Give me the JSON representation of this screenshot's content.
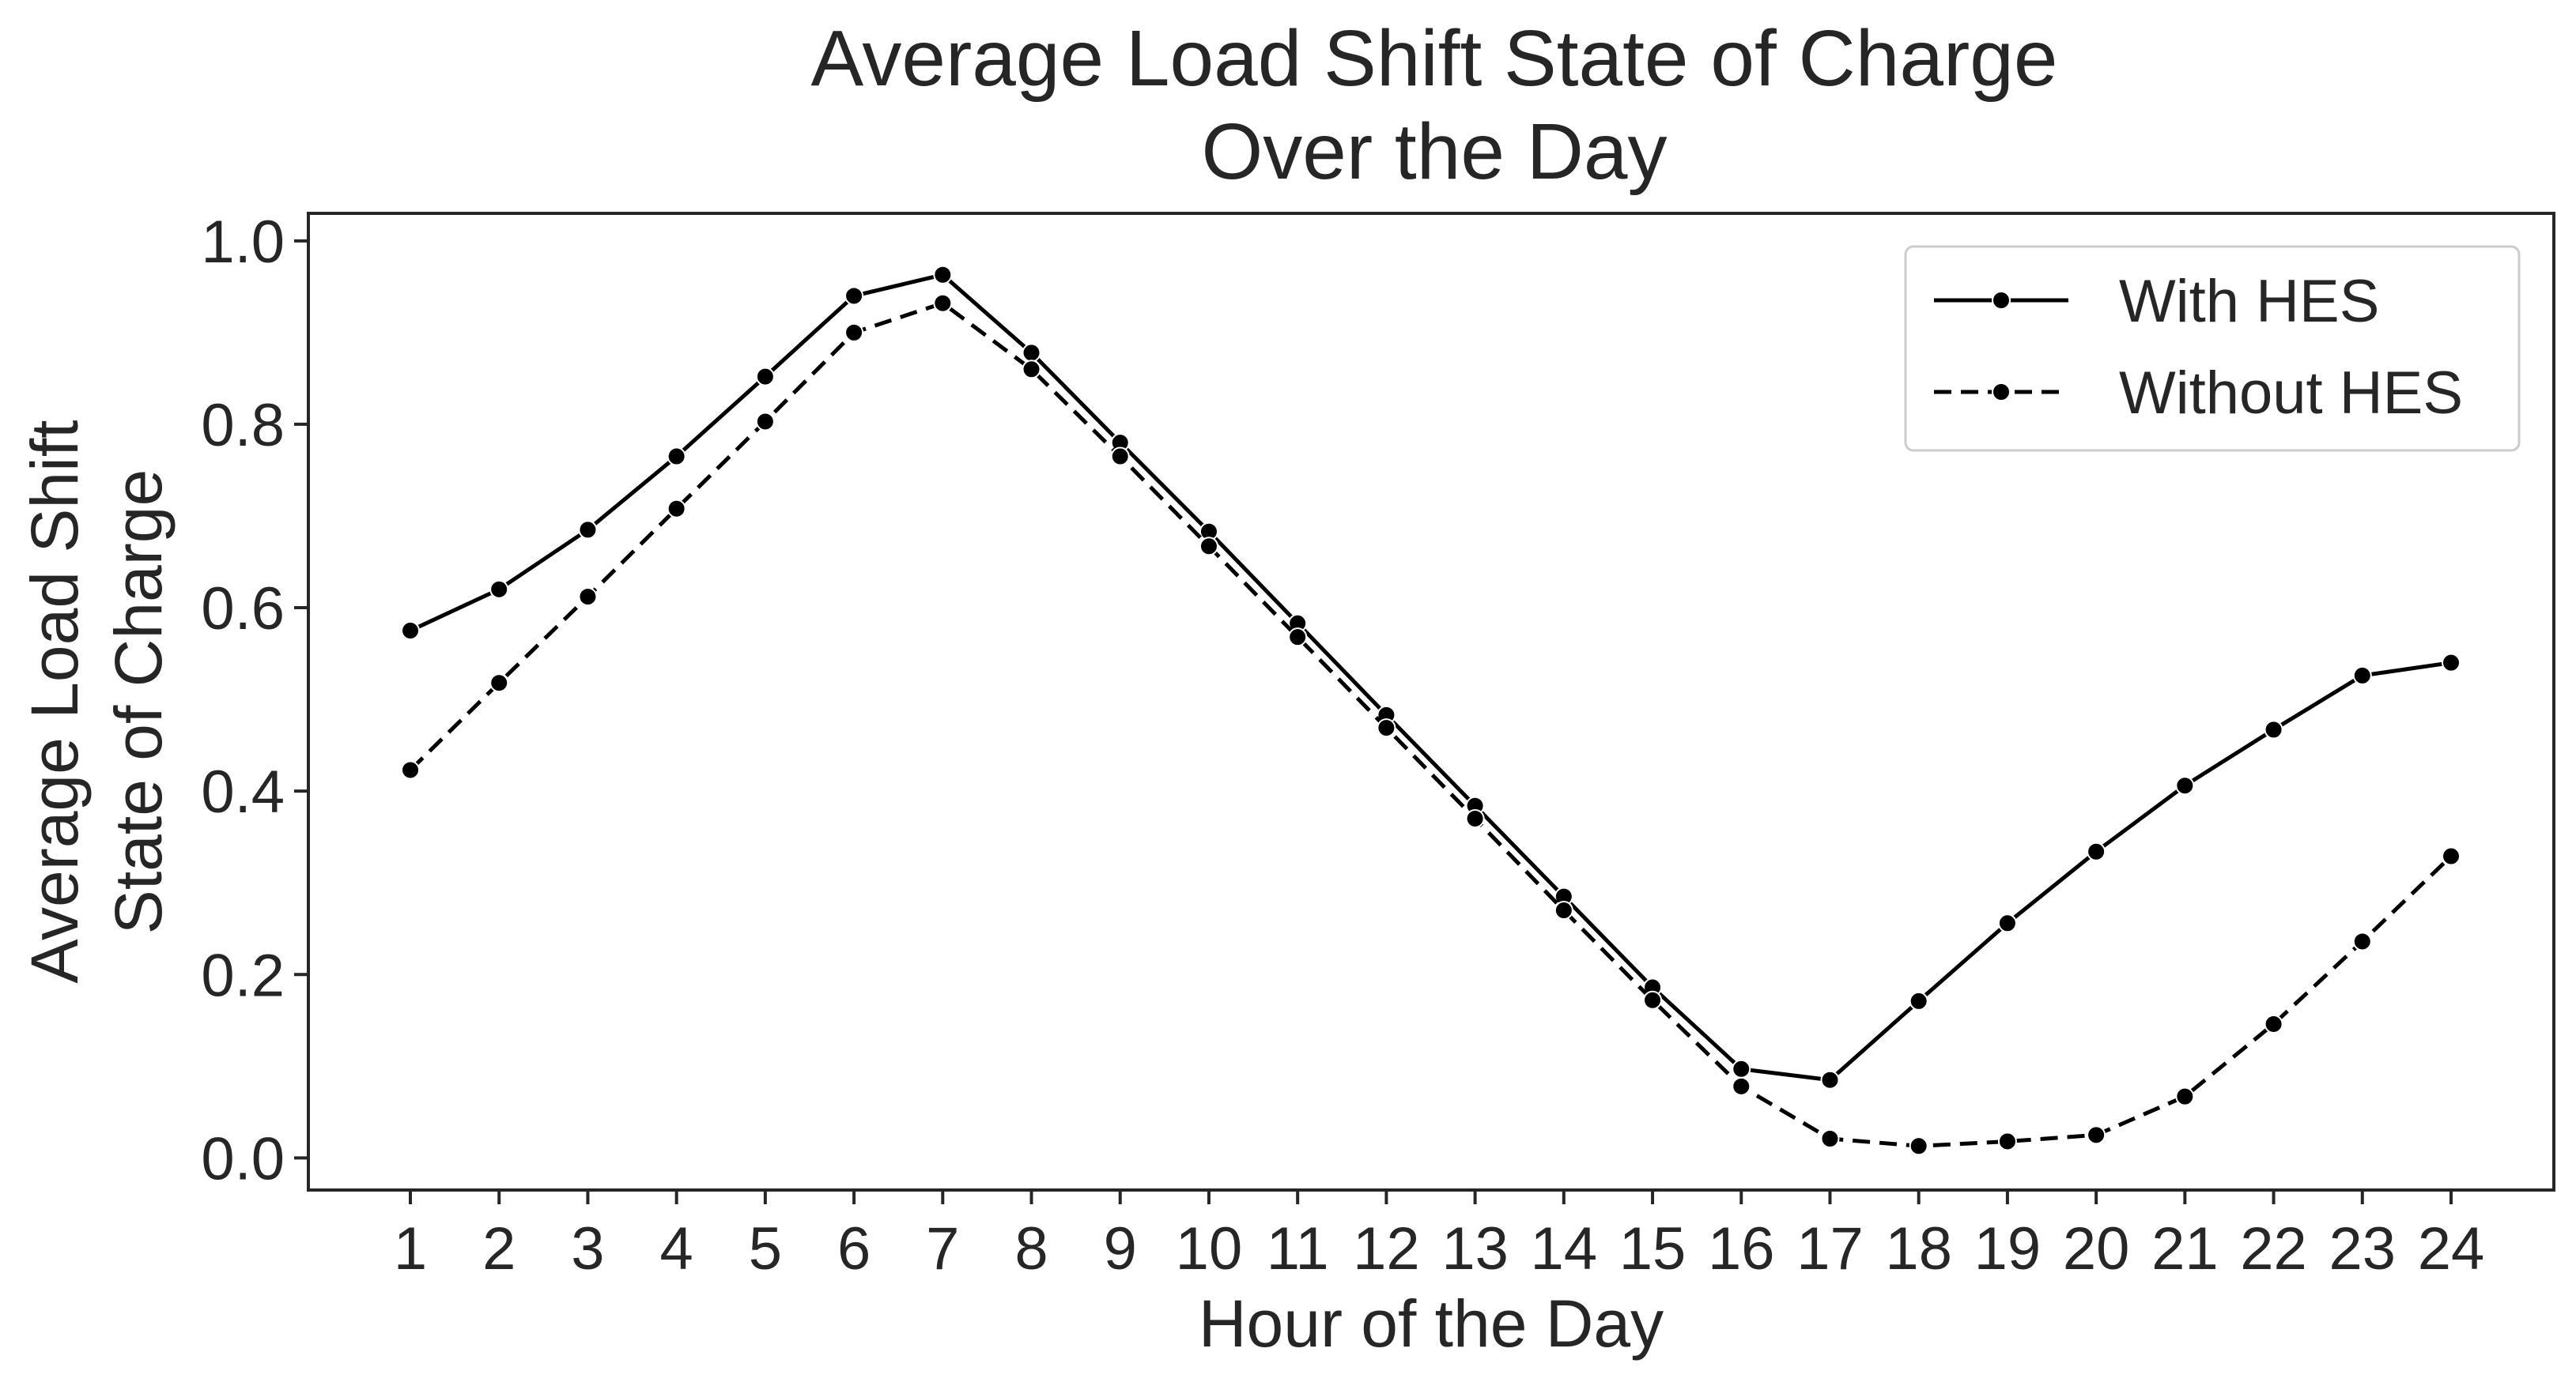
{
  "chart_data": {
    "type": "line",
    "title": [
      "Average Load Shift State of Charge",
      "Over the Day"
    ],
    "xlabel": "Hour of the Day",
    "ylabel": [
      "Average Load Shift",
      "State of Charge"
    ],
    "categories": [
      "1",
      "2",
      "3",
      "4",
      "5",
      "6",
      "7",
      "8",
      "9",
      "10",
      "11",
      "12",
      "13",
      "14",
      "15",
      "16",
      "17",
      "18",
      "19",
      "20",
      "21",
      "22",
      "23",
      "24"
    ],
    "ylim": [
      -0.035,
      1.03
    ],
    "yticks": [
      "0.0",
      "0.2",
      "0.4",
      "0.6",
      "0.8",
      "1.0"
    ],
    "ytick_values": [
      0.0,
      0.2,
      0.4,
      0.6,
      0.8,
      1.0
    ],
    "grid": false,
    "legend_position": "top-right",
    "series": [
      {
        "name": "With HES",
        "linestyle": "solid",
        "color": "#000000",
        "values": [
          0.575,
          0.62,
          0.685,
          0.765,
          0.852,
          0.94,
          0.963,
          0.878,
          0.78,
          0.683,
          0.583,
          0.483,
          0.384,
          0.285,
          0.186,
          0.097,
          0.085,
          0.171,
          0.256,
          0.334,
          0.406,
          0.467,
          0.526,
          0.54
        ]
      },
      {
        "name": "Without HES",
        "linestyle": "dashed",
        "color": "#000000",
        "values": [
          0.423,
          0.518,
          0.612,
          0.708,
          0.803,
          0.9,
          0.932,
          0.86,
          0.765,
          0.667,
          0.568,
          0.469,
          0.37,
          0.27,
          0.172,
          0.078,
          0.021,
          0.013,
          0.018,
          0.025,
          0.067,
          0.146,
          0.236,
          0.329
        ]
      }
    ]
  }
}
